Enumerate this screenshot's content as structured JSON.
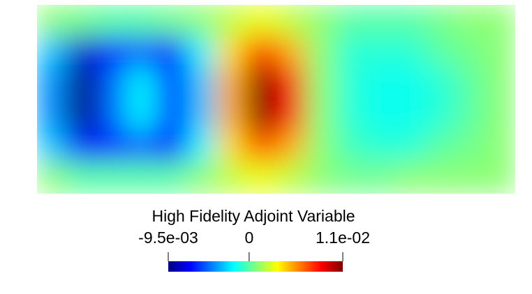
{
  "chart_data": {
    "type": "heatmap",
    "title": "High Fidelity Adjoint Variable",
    "colormap": "jet",
    "clim": [
      -0.0095,
      0.011
    ],
    "cticks": [
      {
        "value": -0.0095,
        "label": "-9.5e-03"
      },
      0,
      {
        "value": 0.011,
        "label": "1.1e-02"
      }
    ],
    "z": [
      [
        0.001,
        0.0005,
        0,
        0,
        0.0005,
        0.001,
        0.002,
        0.003,
        0.002,
        0.001,
        0,
        0,
        0,
        0.0005,
        0.001,
        0.001
      ],
      [
        -0.003,
        -0.008,
        -0.006,
        -0.005,
        -0.007,
        -0.002,
        0.004,
        0.008,
        0.005,
        0.001,
        -0.001,
        -0.001,
        -0.001,
        0,
        0.0005,
        0.001
      ],
      [
        -0.004,
        -0.0095,
        -0.005,
        -0.002,
        -0.006,
        -0.003,
        0.005,
        0.011,
        0.008,
        0.001,
        -0.001,
        -0.0015,
        -0.0015,
        -0.001,
        0,
        0.001
      ],
      [
        -0.004,
        -0.0095,
        -0.005,
        -0.002,
        -0.006,
        -0.003,
        0.005,
        0.011,
        0.008,
        0.001,
        -0.001,
        -0.0015,
        -0.0015,
        -0.001,
        0,
        0.001
      ],
      [
        -0.003,
        -0.007,
        -0.006,
        -0.005,
        -0.007,
        -0.002,
        0.004,
        0.007,
        0.005,
        0.001,
        -0.0005,
        -0.001,
        -0.001,
        0,
        0.0005,
        0.001
      ],
      [
        0.001,
        0,
        0,
        0,
        0,
        0.001,
        0.002,
        0.003,
        0.002,
        0.001,
        0.0005,
        0.0005,
        0.001,
        0.001,
        0.001,
        0.001
      ]
    ]
  }
}
